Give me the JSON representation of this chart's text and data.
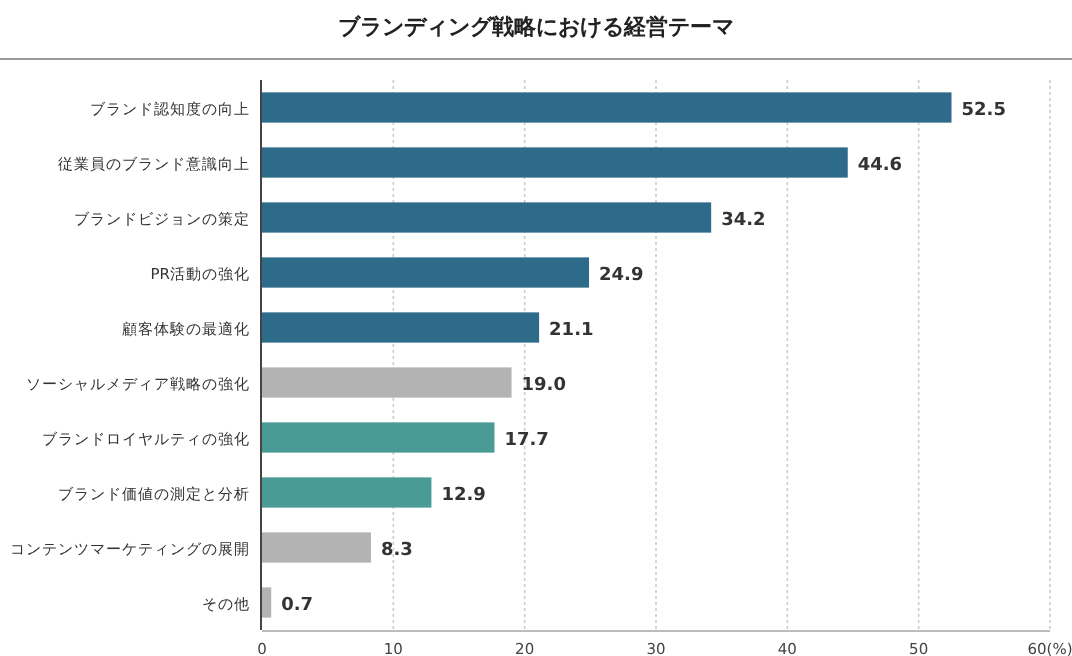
{
  "chart_data": {
    "type": "bar",
    "orientation": "horizontal",
    "title": "ブランディング戦略における経営テーマ",
    "categories": [
      "ブランド認知度の向上",
      "従業員のブランド意識向上",
      "ブランドビジョンの策定",
      "PR活動の強化",
      "顧客体験の最適化",
      "ソーシャルメディア戦略の強化",
      "ブランドロイヤルティの強化",
      "ブランド価値の測定と分析",
      "コンテンツマーケティングの展開",
      "その他"
    ],
    "values": [
      52.5,
      44.6,
      34.2,
      24.9,
      21.1,
      19.0,
      17.7,
      12.9,
      8.3,
      0.7
    ],
    "colors": [
      "#2e6a8a",
      "#2e6a8a",
      "#2e6a8a",
      "#2e6a8a",
      "#2e6a8a",
      "#b3b3b3",
      "#4a9a95",
      "#4a9a95",
      "#b3b3b3",
      "#b3b3b3"
    ],
    "value_labels": [
      "52.5",
      "44.6",
      "34.2",
      "24.9",
      "21.1",
      "19.0",
      "17.7",
      "12.9",
      "8.3",
      "0.7"
    ],
    "xlim": [
      0,
      60
    ],
    "xticks": [
      0,
      10,
      20,
      30,
      40,
      50,
      {
        "value": 60,
        "label": "60(%)"
      }
    ],
    "grid": "x"
  }
}
